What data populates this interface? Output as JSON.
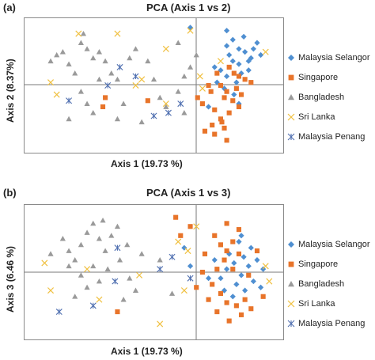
{
  "panels": [
    {
      "letter": "(a)",
      "title": "PCA (Axis 1 vs 2)",
      "xlabel": "Axis 1 (19.73 %)",
      "ylabel": "Axis 2 (8.37%)"
    },
    {
      "letter": "(b)",
      "title": "PCA (Axis 1 vs 3)",
      "xlabel": "Axis 1 (19.73 %)",
      "ylabel": "Axis 3 (6.46 %)"
    }
  ],
  "legend": [
    {
      "name": "Malaysia Selangor",
      "marker": "diamond",
      "color": "#4f8fd1"
    },
    {
      "name": "Singapore",
      "marker": "square",
      "color": "#e8742a"
    },
    {
      "name": "Bangladesh",
      "marker": "triangle",
      "color": "#9a9a9a"
    },
    {
      "name": "Sri Lanka",
      "marker": "x",
      "color": "#f0c040"
    },
    {
      "name": "Malaysia Penang",
      "marker": "asterisk",
      "color": "#4f6fb0"
    }
  ],
  "chart_data": [
    {
      "type": "scatter",
      "title": "PCA (Axis 1 vs 2)",
      "xlabel": "Axis 1 (19.73 %)",
      "ylabel": "Axis 2 (8.37%)",
      "xlim": [
        -1,
        1
      ],
      "ylim": [
        -1,
        1
      ],
      "grid": false,
      "legend": "right",
      "series": [
        {
          "name": "Malaysia Selangor",
          "points": [
            [
              0.6,
              0.9
            ],
            [
              0.65,
              0.75
            ],
            [
              0.7,
              0.6
            ],
            [
              0.75,
              0.55
            ],
            [
              0.8,
              0.45
            ],
            [
              0.7,
              0.35
            ],
            [
              0.65,
              0.4
            ],
            [
              0.72,
              0.2
            ],
            [
              0.78,
              0.25
            ],
            [
              0.6,
              0.15
            ],
            [
              0.68,
              0.05
            ],
            [
              0.82,
              0.6
            ],
            [
              0.85,
              0.7
            ],
            [
              0.74,
              0.8
            ],
            [
              0.62,
              0.5
            ],
            [
              0.55,
              0.25
            ],
            [
              0.58,
              -0.05
            ],
            [
              0.66,
              -0.15
            ],
            [
              0.5,
              0.3
            ],
            [
              0.52,
              0.05
            ],
            [
              0.88,
              0.5
            ],
            [
              0.7,
              -0.3
            ],
            [
              0.3,
              0.95
            ],
            [
              0.45,
              -0.35
            ],
            [
              0.78,
              0.4
            ],
            [
              0.6,
              0.65
            ]
          ]
        },
        {
          "name": "Singapore",
          "points": [
            [
              0.55,
              0.0
            ],
            [
              0.6,
              -0.1
            ],
            [
              0.65,
              -0.25
            ],
            [
              0.7,
              -0.35
            ],
            [
              0.62,
              -0.45
            ],
            [
              0.55,
              -0.55
            ],
            [
              0.48,
              -0.65
            ],
            [
              0.5,
              -0.8
            ],
            [
              0.42,
              -0.75
            ],
            [
              0.58,
              -0.7
            ],
            [
              0.68,
              -0.05
            ],
            [
              0.75,
              0.1
            ],
            [
              0.62,
              0.3
            ],
            [
              0.52,
              0.2
            ],
            [
              0.45,
              0.0
            ],
            [
              0.4,
              -0.3
            ],
            [
              0.58,
              -0.2
            ],
            [
              0.72,
              -0.15
            ],
            [
              0.66,
              0.2
            ],
            [
              0.5,
              -0.4
            ],
            [
              0.47,
              -0.1
            ],
            [
              0.8,
              0.05
            ],
            [
              0.36,
              -0.2
            ],
            [
              0.56,
              -0.6
            ],
            [
              -0.05,
              -0.25
            ],
            [
              -0.42,
              -0.35
            ],
            [
              -0.4,
              -0.2
            ],
            [
              0.7,
              0.15
            ],
            [
              0.6,
              -0.9
            ]
          ]
        },
        {
          "name": "Bangladesh",
          "points": [
            [
              -0.85,
              0.4
            ],
            [
              -0.8,
              0.5
            ],
            [
              -0.7,
              0.35
            ],
            [
              -0.75,
              0.55
            ],
            [
              -0.6,
              0.7
            ],
            [
              -0.55,
              0.6
            ],
            [
              -0.5,
              0.45
            ],
            [
              -0.45,
              0.55
            ],
            [
              -0.4,
              0.4
            ],
            [
              -0.65,
              0.2
            ],
            [
              -0.35,
              0.2
            ],
            [
              -0.3,
              0.1
            ],
            [
              -0.6,
              -0.1
            ],
            [
              -0.55,
              -0.3
            ],
            [
              -0.5,
              -0.45
            ],
            [
              -0.3,
              -0.55
            ],
            [
              -0.25,
              -0.3
            ],
            [
              -0.2,
              0.45
            ],
            [
              -0.15,
              0.6
            ],
            [
              -0.05,
              0.4
            ],
            [
              0.0,
              0.1
            ],
            [
              0.05,
              -0.2
            ],
            [
              0.1,
              -0.35
            ],
            [
              0.2,
              -0.1
            ],
            [
              0.25,
              0.15
            ],
            [
              0.3,
              0.3
            ],
            [
              0.35,
              0.5
            ],
            [
              0.2,
              0.7
            ],
            [
              0.25,
              -0.45
            ],
            [
              -0.1,
              -0.6
            ],
            [
              -0.45,
              0.1
            ],
            [
              -0.7,
              -0.55
            ],
            [
              -0.58,
              0.85
            ]
          ]
        },
        {
          "name": "Sri Lanka",
          "points": [
            [
              -0.85,
              0.05
            ],
            [
              -0.8,
              -0.15
            ],
            [
              -0.62,
              0.85
            ],
            [
              -0.3,
              0.85
            ],
            [
              -0.1,
              0.1
            ],
            [
              -0.15,
              0.0
            ],
            [
              0.1,
              0.6
            ],
            [
              0.3,
              0.9
            ],
            [
              0.38,
              0.15
            ],
            [
              0.4,
              -0.05
            ],
            [
              0.1,
              -0.3
            ],
            [
              0.92,
              0.55
            ],
            [
              0.55,
              0.4
            ]
          ]
        },
        {
          "name": "Malaysia Penang",
          "points": [
            [
              -0.7,
              -0.25
            ],
            [
              -0.38,
              0.0
            ],
            [
              -0.28,
              0.3
            ],
            [
              -0.15,
              0.15
            ],
            [
              0.0,
              -0.5
            ],
            [
              0.12,
              -0.45
            ],
            [
              0.22,
              -0.3
            ]
          ]
        }
      ]
    },
    {
      "type": "scatter",
      "title": "PCA (Axis 1 vs 3)",
      "xlabel": "Axis 1 (19.73 %)",
      "ylabel": "Axis 3 (6.46 %)",
      "xlim": [
        -1,
        1
      ],
      "ylim": [
        -1,
        1
      ],
      "grid": false,
      "legend": "right",
      "series": [
        {
          "name": "Malaysia Selangor",
          "points": [
            [
              0.7,
              0.5
            ],
            [
              0.8,
              0.4
            ],
            [
              0.85,
              0.2
            ],
            [
              0.78,
              0.1
            ],
            [
              0.72,
              -0.05
            ],
            [
              0.68,
              -0.2
            ],
            [
              0.75,
              -0.3
            ],
            [
              0.82,
              -0.15
            ],
            [
              0.9,
              0.05
            ],
            [
              0.62,
              0.3
            ],
            [
              0.6,
              0.05
            ],
            [
              0.55,
              -0.1
            ],
            [
              0.66,
              0.15
            ],
            [
              0.74,
              0.25
            ],
            [
              0.58,
              -0.3
            ],
            [
              0.88,
              -0.25
            ],
            [
              0.5,
              0.2
            ],
            [
              0.45,
              -0.1
            ],
            [
              0.3,
              0.1
            ],
            [
              0.25,
              0.4
            ],
            [
              0.65,
              -0.4
            ],
            [
              0.72,
              0.6
            ]
          ]
        },
        {
          "name": "Singapore",
          "points": [
            [
              0.5,
              0.6
            ],
            [
              0.55,
              0.45
            ],
            [
              0.6,
              0.35
            ],
            [
              0.65,
              0.5
            ],
            [
              0.7,
              0.3
            ],
            [
              0.58,
              0.2
            ],
            [
              0.52,
              0.05
            ],
            [
              0.48,
              -0.2
            ],
            [
              0.55,
              -0.35
            ],
            [
              0.6,
              -0.5
            ],
            [
              0.68,
              -0.55
            ],
            [
              0.75,
              -0.45
            ],
            [
              0.8,
              -0.6
            ],
            [
              0.72,
              -0.7
            ],
            [
              0.62,
              -0.8
            ],
            [
              0.42,
              0.3
            ],
            [
              0.4,
              0.0
            ],
            [
              0.35,
              -0.25
            ],
            [
              0.45,
              -0.45
            ],
            [
              0.52,
              -0.65
            ],
            [
              0.65,
              0.05
            ],
            [
              0.78,
              -0.05
            ],
            [
              0.85,
              0.35
            ],
            [
              0.7,
              0.7
            ],
            [
              0.18,
              0.9
            ],
            [
              0.22,
              0.6
            ],
            [
              0.3,
              0.75
            ],
            [
              -0.3,
              -0.65
            ],
            [
              0.6,
              0.8
            ],
            [
              0.9,
              -0.4
            ]
          ]
        },
        {
          "name": "Bangladesh",
          "points": [
            [
              -0.75,
              0.55
            ],
            [
              -0.7,
              0.35
            ],
            [
              -0.65,
              0.2
            ],
            [
              -0.6,
              0.45
            ],
            [
              -0.55,
              0.65
            ],
            [
              -0.5,
              0.8
            ],
            [
              -0.45,
              0.55
            ],
            [
              -0.4,
              0.35
            ],
            [
              -0.35,
              0.6
            ],
            [
              -0.3,
              0.75
            ],
            [
              -0.28,
              0.2
            ],
            [
              -0.22,
              0.45
            ],
            [
              -0.5,
              0.1
            ],
            [
              -0.6,
              -0.05
            ],
            [
              -0.55,
              -0.25
            ],
            [
              -0.45,
              -0.15
            ],
            [
              -0.38,
              0.05
            ],
            [
              -0.2,
              -0.1
            ],
            [
              -0.1,
              0.3
            ],
            [
              -0.15,
              -0.3
            ],
            [
              -0.65,
              -0.4
            ],
            [
              -0.7,
              0.1
            ],
            [
              0.15,
              -0.35
            ],
            [
              0.05,
              0.2
            ],
            [
              -0.42,
              0.85
            ],
            [
              -0.85,
              0.3
            ],
            [
              -0.25,
              -0.45
            ]
          ]
        },
        {
          "name": "Sri Lanka",
          "points": [
            [
              -0.9,
              0.15
            ],
            [
              -0.85,
              -0.3
            ],
            [
              -0.55,
              0.05
            ],
            [
              -0.45,
              -0.45
            ],
            [
              -0.12,
              -0.05
            ],
            [
              0.2,
              0.5
            ],
            [
              0.25,
              -0.3
            ],
            [
              0.35,
              0.75
            ],
            [
              0.28,
              0.35
            ],
            [
              0.05,
              -0.85
            ],
            [
              0.95,
              -0.15
            ],
            [
              0.92,
              0.1
            ]
          ]
        },
        {
          "name": "Malaysia Penang",
          "points": [
            [
              -0.78,
              -0.65
            ],
            [
              -0.5,
              -0.55
            ],
            [
              -0.32,
              -0.15
            ],
            [
              -0.3,
              0.4
            ],
            [
              0.05,
              0.05
            ],
            [
              0.15,
              0.25
            ],
            [
              0.3,
              -0.1
            ]
          ]
        }
      ]
    }
  ]
}
